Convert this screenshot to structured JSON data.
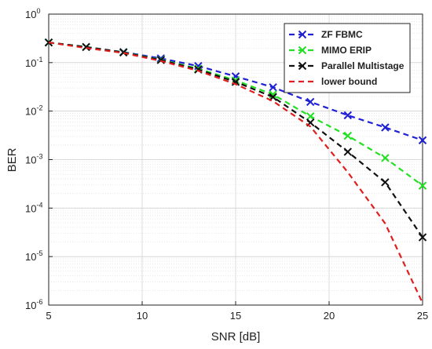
{
  "chart_data": {
    "type": "line",
    "title": "",
    "xlabel": "SNR [dB]",
    "ylabel": "BER",
    "xlim": [
      5,
      25
    ],
    "ylim": [
      1e-06,
      1
    ],
    "yscale": "log",
    "grid": true,
    "legend_position": "top-right",
    "x_ticks": [
      5,
      10,
      15,
      20,
      25
    ],
    "y_ticks": [
      {
        "value": 1,
        "base": "10",
        "exp": "0"
      },
      {
        "value": 0.1,
        "base": "10",
        "exp": "-1"
      },
      {
        "value": 0.01,
        "base": "10",
        "exp": "-2"
      },
      {
        "value": 0.001,
        "base": "10",
        "exp": "-3"
      },
      {
        "value": 0.0001,
        "base": "10",
        "exp": "-4"
      },
      {
        "value": 1e-05,
        "base": "10",
        "exp": "-5"
      },
      {
        "value": 1e-06,
        "base": "10",
        "exp": "-6"
      }
    ],
    "series": [
      {
        "name": "ZF FBMC",
        "color": "#1f1fd6",
        "marker": "x",
        "dashed": true,
        "x": [
          5,
          7,
          9,
          11,
          13,
          15,
          17,
          19,
          21,
          23,
          25
        ],
        "y": [
          0.26,
          0.21,
          0.165,
          0.122,
          0.085,
          0.052,
          0.031,
          0.0155,
          0.0082,
          0.0046,
          0.0025
        ]
      },
      {
        "name": "MIMO ERIP",
        "color": "#22e022",
        "marker": "x",
        "dashed": true,
        "x": [
          5,
          7,
          9,
          11,
          13,
          15,
          17,
          19,
          21,
          23,
          25
        ],
        "y": [
          0.26,
          0.21,
          0.163,
          0.115,
          0.075,
          0.043,
          0.022,
          0.0078,
          0.0031,
          0.00108,
          0.00029
        ]
      },
      {
        "name": "Parallel Multistage",
        "color": "#111111",
        "marker": "x",
        "dashed": true,
        "x": [
          5,
          7,
          9,
          11,
          13,
          15,
          17,
          19,
          21,
          23,
          25
        ],
        "y": [
          0.26,
          0.21,
          0.162,
          0.113,
          0.072,
          0.04,
          0.0195,
          0.0058,
          0.00145,
          0.00034,
          2.5e-05
        ]
      },
      {
        "name": "lower bound",
        "color": "#e01e1e",
        "marker": "none",
        "dashed": true,
        "x": [
          5,
          7,
          9,
          11,
          13,
          15,
          17,
          19,
          21,
          23,
          25
        ],
        "y": [
          0.26,
          0.2,
          0.158,
          0.108,
          0.068,
          0.036,
          0.016,
          0.0048,
          0.00055,
          4.8e-05,
          1.1e-06
        ]
      }
    ]
  }
}
